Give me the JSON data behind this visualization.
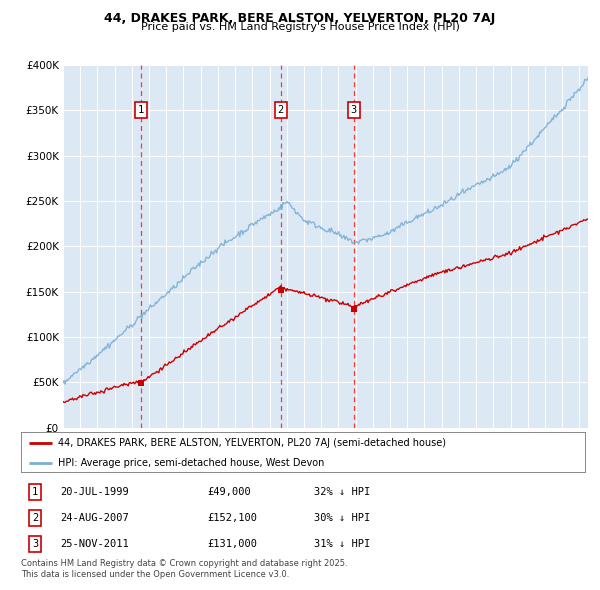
{
  "title": "44, DRAKES PARK, BERE ALSTON, YELVERTON, PL20 7AJ",
  "subtitle": "Price paid vs. HM Land Registry's House Price Index (HPI)",
  "transactions": [
    {
      "num": 1,
      "date": "20-JUL-1999",
      "price": 49000,
      "pct": "32%↓ HPI",
      "x_year": 1999.55
    },
    {
      "num": 2,
      "date": "24-AUG-2007",
      "price": 152100,
      "pct": "30%↓ HPI",
      "x_year": 2007.64
    },
    {
      "num": 3,
      "date": "25-NOV-2011",
      "price": 131000,
      "pct": "31%↓ HPI",
      "x_year": 2011.9
    }
  ],
  "legend_line1": "44, DRAKES PARK, BERE ALSTON, YELVERTON, PL20 7AJ (semi-detached house)",
  "legend_line2": "HPI: Average price, semi-detached house, West Devon",
  "footer": "Contains HM Land Registry data © Crown copyright and database right 2025.\nThis data is licensed under the Open Government Licence v3.0.",
  "price_color": "#cc0000",
  "hpi_color": "#7bafd4",
  "plot_bg_color": "#dce9f5",
  "ylim": [
    0,
    400000
  ],
  "xlim_start": 1995.0,
  "xlim_end": 2025.5,
  "yticks": [
    0,
    50000,
    100000,
    150000,
    200000,
    250000,
    300000,
    350000,
    400000
  ]
}
